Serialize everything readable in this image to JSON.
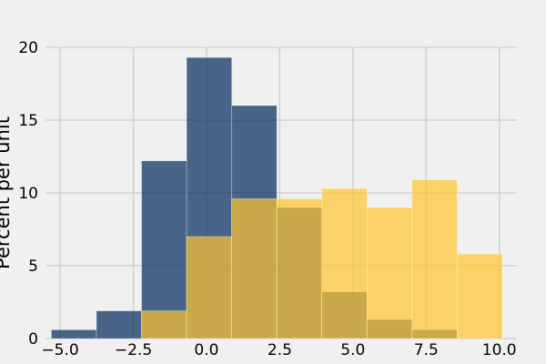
{
  "chart_data": {
    "type": "histogram",
    "title": "",
    "xlabel": "",
    "ylabel": "Percent per unit",
    "xlim": [
      -5.5,
      10.6
    ],
    "ylim": [
      0,
      20
    ],
    "grid": true,
    "x_ticks": [
      {
        "value": -5.0,
        "label": "−5.0"
      },
      {
        "value": -2.5,
        "label": "−2.5"
      },
      {
        "value": 0.0,
        "label": "0.0"
      },
      {
        "value": 2.5,
        "label": "2.5"
      },
      {
        "value": 5.0,
        "label": "5.0"
      },
      {
        "value": 7.5,
        "label": "7.5"
      },
      {
        "value": 10.0,
        "label": "10.0"
      }
    ],
    "y_ticks": [
      {
        "value": 0,
        "label": "0"
      },
      {
        "value": 5,
        "label": "5"
      },
      {
        "value": 10,
        "label": "10"
      },
      {
        "value": 15,
        "label": "15"
      },
      {
        "value": 20,
        "label": "20"
      }
    ],
    "series": [
      {
        "color": "#002a5c",
        "opacity": 0.7,
        "bins": [
          {
            "x0": -5.3,
            "x1": -3.76,
            "value": 0.6
          },
          {
            "x0": -3.76,
            "x1": -2.22,
            "value": 1.9
          },
          {
            "x0": -2.22,
            "x1": -0.68,
            "value": 12.2
          },
          {
            "x0": -0.68,
            "x1": 0.86,
            "value": 19.3
          },
          {
            "x0": 0.86,
            "x1": 2.4,
            "value": 16.0
          },
          {
            "x0": 2.4,
            "x1": 3.94,
            "value": 9.0
          },
          {
            "x0": 3.94,
            "x1": 5.48,
            "value": 3.2
          },
          {
            "x0": 5.48,
            "x1": 7.02,
            "value": 1.3
          },
          {
            "x0": 7.02,
            "x1": 8.56,
            "value": 0.6
          }
        ]
      },
      {
        "color": "#ffc52c",
        "opacity": 0.7,
        "bins": [
          {
            "x0": -2.22,
            "x1": -0.68,
            "value": 1.9
          },
          {
            "x0": -0.68,
            "x1": 0.86,
            "value": 7.0
          },
          {
            "x0": 0.86,
            "x1": 2.4,
            "value": 9.6
          },
          {
            "x0": 2.4,
            "x1": 3.94,
            "value": 9.6
          },
          {
            "x0": 3.94,
            "x1": 5.48,
            "value": 10.3
          },
          {
            "x0": 5.48,
            "x1": 7.02,
            "value": 9.0
          },
          {
            "x0": 7.02,
            "x1": 8.56,
            "value": 10.9
          },
          {
            "x0": 8.56,
            "x1": 10.1,
            "value": 5.8
          }
        ]
      }
    ]
  }
}
